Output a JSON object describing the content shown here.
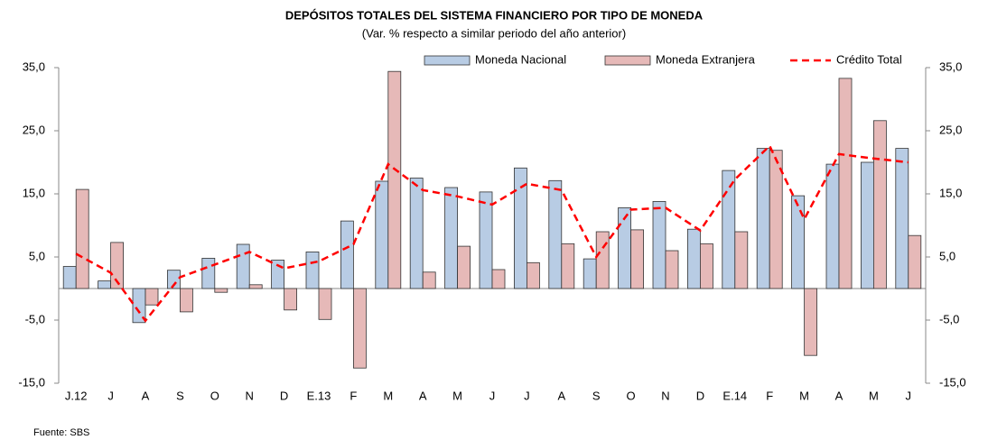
{
  "chart_data": {
    "type": "bar-line",
    "title": "DEPÓSITOS TOTALES  DEL SISTEMA FINANCIERO POR TIPO DE MONEDA",
    "subtitle": "(Var. % respecto a similar periodo del año anterior)",
    "source": "Fuente: SBS",
    "categories": [
      "J.12",
      "J",
      "A",
      "S",
      "O",
      "N",
      "D",
      "E.13",
      "F",
      "M",
      "A",
      "M",
      "J",
      "J",
      "A",
      "S",
      "O",
      "N",
      "D",
      "E.14",
      "F",
      "M",
      "A",
      "M",
      "J"
    ],
    "series": [
      {
        "name": "Moneda Nacional",
        "kind": "bar",
        "color": "#b8cce4",
        "values": [
          3.5,
          1.2,
          -5.4,
          2.9,
          4.8,
          7.0,
          4.5,
          5.8,
          10.7,
          17.0,
          17.5,
          16.0,
          15.3,
          19.1,
          17.1,
          4.7,
          12.8,
          13.8,
          9.4,
          18.7,
          22.2,
          14.7,
          19.7,
          20.0,
          22.2
        ]
      },
      {
        "name": "Moneda Extranjera",
        "kind": "bar",
        "color": "#e6b9b8",
        "values": [
          15.7,
          7.3,
          -2.6,
          -3.7,
          -0.6,
          0.6,
          -3.4,
          -4.9,
          -12.6,
          34.4,
          2.6,
          6.7,
          3.0,
          4.1,
          7.1,
          9.0,
          9.3,
          6.0,
          7.1,
          9.0,
          21.9,
          -10.6,
          33.3,
          26.6,
          8.4
        ]
      },
      {
        "name": "Crédito Total",
        "kind": "line",
        "axis": "y2",
        "color": "#ff0000",
        "values": [
          5.5,
          2.5,
          -5.1,
          1.8,
          3.8,
          5.8,
          3.2,
          4.3,
          7.0,
          19.7,
          15.6,
          14.6,
          13.3,
          16.6,
          15.6,
          5.0,
          12.5,
          12.8,
          9.2,
          17.3,
          22.6,
          11.0,
          21.3,
          20.6,
          20.0
        ]
      }
    ],
    "ylim": [
      -15,
      35
    ],
    "yticks": [
      {
        "value": -15,
        "label": "-15,0"
      },
      {
        "value": -5,
        "label": "-5,0"
      },
      {
        "value": 5,
        "label": "5,0"
      },
      {
        "value": 15,
        "label": "15,0"
      },
      {
        "value": 25,
        "label": "25,0"
      },
      {
        "value": 35,
        "label": "35,0"
      }
    ],
    "y2lim": [
      -15,
      35
    ],
    "y2ticks": [
      {
        "value": -15,
        "label": "-15,0"
      },
      {
        "value": -5,
        "label": "-5,0"
      },
      {
        "value": 5,
        "label": "5,0"
      },
      {
        "value": 15,
        "label": "15,0"
      },
      {
        "value": 25,
        "label": "25,0"
      },
      {
        "value": 35,
        "label": "35,0"
      }
    ],
    "grid": false,
    "legend": "top"
  }
}
